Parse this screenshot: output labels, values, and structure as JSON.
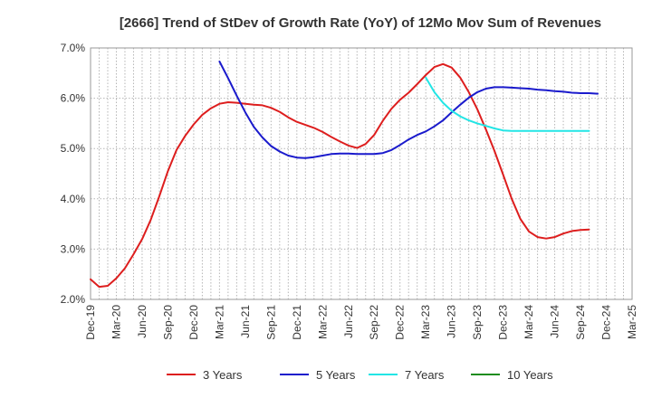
{
  "chart_data": {
    "type": "line",
    "title": "[2666]  Trend of StDev of Growth Rate (YoY) of 12Mo Mov Sum of Revenues",
    "xlabel": "",
    "ylabel": "",
    "ylim": [
      2.0,
      7.0
    ],
    "yticks": [
      2.0,
      3.0,
      4.0,
      5.0,
      6.0,
      7.0
    ],
    "ytick_labels": [
      "2.0%",
      "3.0%",
      "4.0%",
      "5.0%",
      "6.0%",
      "7.0%"
    ],
    "x_start": "2019-12",
    "x_end": "2025-03",
    "xtick_labels": [
      "Dec-19",
      "Mar-20",
      "Jun-20",
      "Sep-20",
      "Dec-20",
      "Mar-21",
      "Jun-21",
      "Sep-21",
      "Dec-21",
      "Mar-22",
      "Jun-22",
      "Sep-22",
      "Dec-22",
      "Mar-23",
      "Jun-23",
      "Sep-23",
      "Dec-23",
      "Mar-24",
      "Jun-24",
      "Sep-24",
      "Dec-24",
      "Mar-25"
    ],
    "grid": true,
    "series": [
      {
        "name": "3 Years",
        "color": "#dd1e1e",
        "start_month_index": 0,
        "values": [
          2.4,
          2.25,
          2.27,
          2.42,
          2.62,
          2.9,
          3.2,
          3.58,
          4.05,
          4.55,
          4.97,
          5.25,
          5.48,
          5.67,
          5.8,
          5.89,
          5.92,
          5.91,
          5.89,
          5.87,
          5.86,
          5.81,
          5.73,
          5.62,
          5.53,
          5.47,
          5.41,
          5.33,
          5.23,
          5.14,
          5.06,
          5.01,
          5.09,
          5.27,
          5.55,
          5.79,
          5.97,
          6.11,
          6.28,
          6.46,
          6.62,
          6.68,
          6.61,
          6.41,
          6.12,
          5.78,
          5.38,
          4.95,
          4.48,
          4.0,
          3.6,
          3.35,
          3.24,
          3.21,
          3.24,
          3.31,
          3.36,
          3.38,
          3.39
        ]
      },
      {
        "name": "5 Years",
        "color": "#1a1acc",
        "start_month_index": 15,
        "values": [
          6.73,
          6.4,
          6.05,
          5.72,
          5.43,
          5.22,
          5.05,
          4.94,
          4.86,
          4.82,
          4.81,
          4.83,
          4.86,
          4.89,
          4.9,
          4.9,
          4.89,
          4.89,
          4.89,
          4.91,
          4.97,
          5.07,
          5.18,
          5.27,
          5.34,
          5.44,
          5.56,
          5.72,
          5.87,
          6.01,
          6.12,
          6.19,
          6.22,
          6.22,
          6.21,
          6.2,
          6.19,
          6.17,
          6.16,
          6.14,
          6.13,
          6.11,
          6.1,
          6.1,
          6.09
        ]
      },
      {
        "name": "7 Years",
        "color": "#22e5e5",
        "start_month_index": 39,
        "values": [
          6.41,
          6.12,
          5.91,
          5.75,
          5.64,
          5.56,
          5.5,
          5.45,
          5.4,
          5.36,
          5.35,
          5.35,
          5.35,
          5.35,
          5.35,
          5.35,
          5.35,
          5.35,
          5.35,
          5.35
        ]
      },
      {
        "name": "10 Years",
        "color": "#1e8c1e",
        "start_month_index": 0,
        "values": []
      }
    ]
  }
}
